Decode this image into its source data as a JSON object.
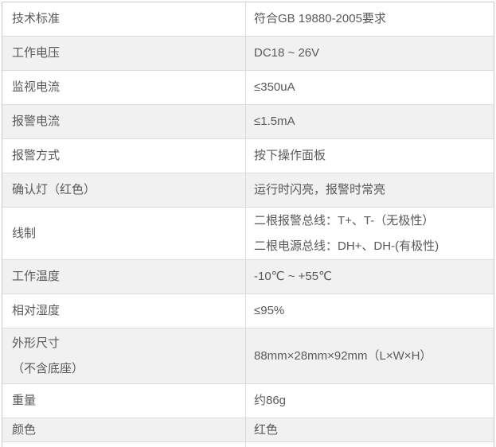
{
  "table": {
    "rows": [
      {
        "label": "技术标准",
        "value": "符合GB 19880-2005要求"
      },
      {
        "label": "工作电压",
        "value": "DC18 ~ 26V"
      },
      {
        "label": "监视电流",
        "value": "≤350uA"
      },
      {
        "label": "报警电流",
        "value": "≤1.5mA"
      },
      {
        "label": "报警方式",
        "value": "按下操作面板"
      },
      {
        "label": "确认灯（红色）",
        "value": "运行时闪亮，报警时常亮"
      },
      {
        "label": "线制",
        "value_lines": [
          "二根报警总线：T+、T-（无极性）",
          "二根电源总线：DH+、DH-(有极性)"
        ]
      },
      {
        "label": "工作温度",
        "value": "-10℃ ~ +55℃"
      },
      {
        "label": "相对湿度",
        "value": "≤95%"
      },
      {
        "label_lines": [
          "外形尺寸",
          "（不含底座）"
        ],
        "value": "88mm×28mm×92mm（L×W×H）"
      },
      {
        "label": "重量",
        "value": "约86g"
      },
      {
        "label": "颜色",
        "value": "红色"
      }
    ]
  },
  "colors": {
    "row_alt_background": "#f1f1f1",
    "row_background": "#ffffff",
    "outer_border": "#c9c9c9",
    "inner_border": "#dcdcdc",
    "text": "#595959"
  }
}
